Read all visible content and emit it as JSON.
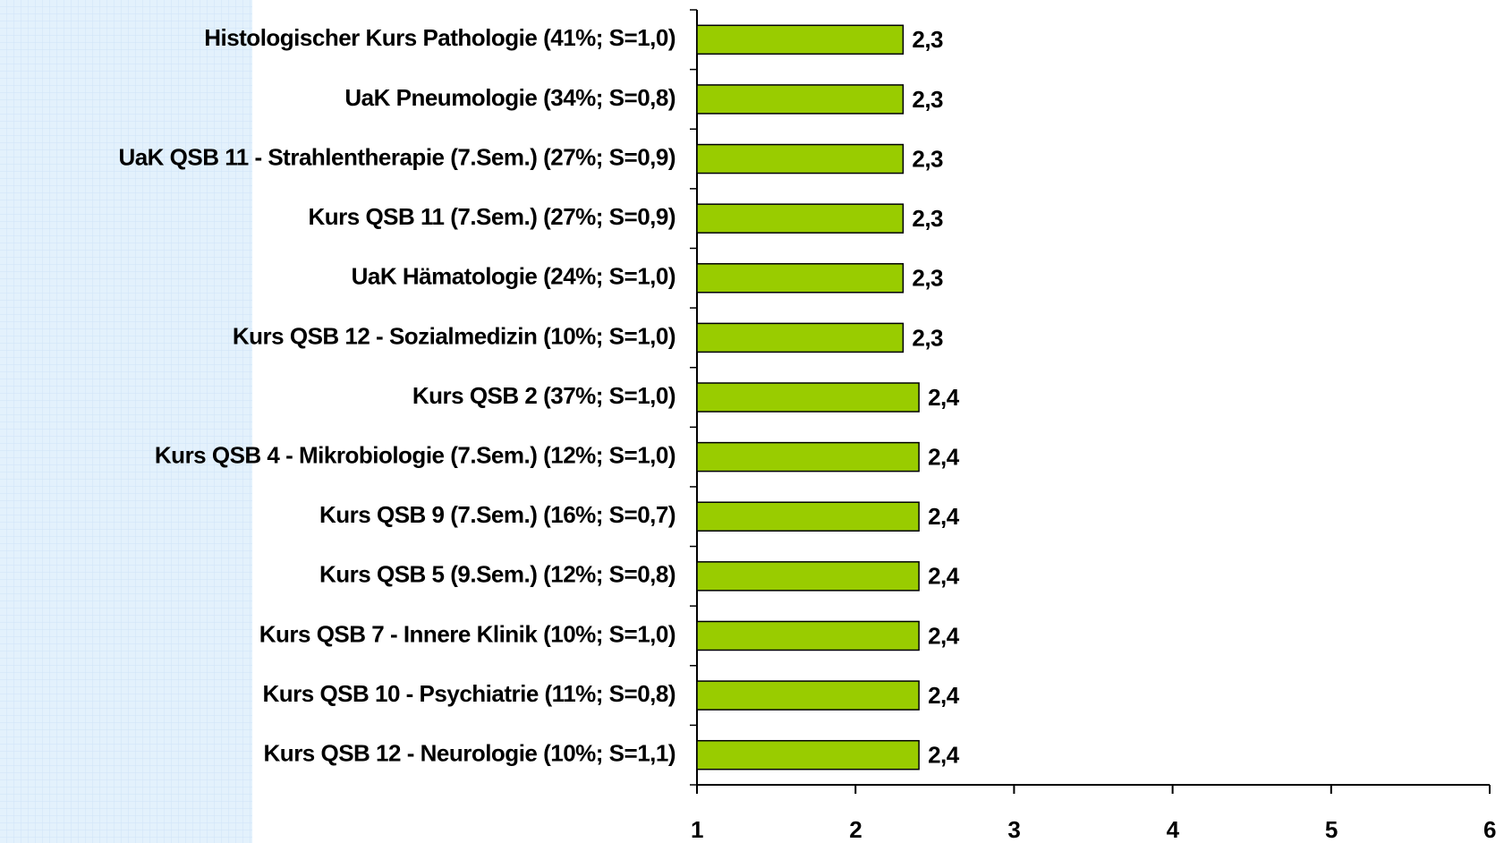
{
  "chart_data": {
    "type": "hbar",
    "categories": [
      "Histologischer Kurs Pathologie (41%; S=1,0)",
      "UaK Pneumologie (34%; S=0,8)",
      "UaK QSB 11 - Strahlentherapie (7.Sem.) (27%; S=0,9)",
      "Kurs QSB 11 (7.Sem.) (27%; S=0,9)",
      "UaK Hämatologie (24%; S=1,0)",
      "Kurs QSB 12 - Sozialmedizin (10%; S=1,0)",
      "Kurs QSB 2 (37%; S=1,0)",
      "Kurs QSB 4 - Mikrobiologie (7.Sem.) (12%; S=1,0)",
      "Kurs QSB 9 (7.Sem.) (16%; S=0,7)",
      "Kurs QSB 5 (9.Sem.) (12%; S=0,8)",
      "Kurs QSB 7 - Innere Klinik (10%; S=1,0)",
      "Kurs QSB 10 - Psychiatrie (11%; S=0,8)",
      "Kurs QSB 12 - Neurologie (10%; S=1,1)"
    ],
    "values": [
      2.3,
      2.3,
      2.3,
      2.3,
      2.3,
      2.3,
      2.4,
      2.4,
      2.4,
      2.4,
      2.4,
      2.4,
      2.4
    ],
    "value_labels": [
      "2,3",
      "2,3",
      "2,3",
      "2,3",
      "2,3",
      "2,3",
      "2,4",
      "2,4",
      "2,4",
      "2,4",
      "2,4",
      "2,4",
      "2,4"
    ],
    "color": "#99cc00",
    "xlim": [
      1,
      6
    ],
    "xticks": [
      1,
      2,
      3,
      4,
      5,
      6
    ]
  }
}
